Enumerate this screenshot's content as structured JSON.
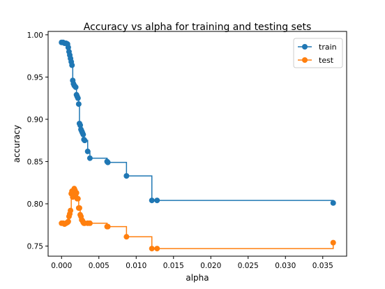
{
  "chart_data": {
    "type": "line",
    "title": "Accuracy vs alpha for training and testing sets",
    "xlabel": "alpha",
    "ylabel": "accuracy",
    "xlim": [
      -0.0018,
      0.0382
    ],
    "ylim": [
      0.738,
      1.004
    ],
    "xticks": [
      0.0,
      0.005,
      0.01,
      0.015,
      0.02,
      0.025,
      0.03,
      0.035
    ],
    "xtick_labels": [
      "0.000",
      "0.005",
      "0.010",
      "0.015",
      "0.020",
      "0.025",
      "0.030",
      "0.035"
    ],
    "yticks": [
      0.75,
      0.8,
      0.85,
      0.9,
      0.95,
      1.0
    ],
    "ytick_labels": [
      "0.75",
      "0.80",
      "0.85",
      "0.90",
      "0.95",
      "1.00"
    ],
    "grid": false,
    "legend_position": "top-right",
    "step": "post",
    "x": [
      0.0,
      0.0002,
      0.0004,
      0.0006,
      0.0008,
      0.0009,
      0.001,
      0.0011,
      0.0012,
      0.0013,
      0.0014,
      0.0015,
      0.0016,
      0.0017,
      0.0018,
      0.0019,
      0.002,
      0.0021,
      0.0022,
      0.0023,
      0.0024,
      0.0025,
      0.0026,
      0.0027,
      0.0028,
      0.0029,
      0.003,
      0.0031,
      0.0035,
      0.0038,
      0.0061,
      0.0062,
      0.0087,
      0.0121,
      0.0128,
      0.0364
    ],
    "series": [
      {
        "name": "train",
        "color": "#1f77b4",
        "values": [
          0.991,
          0.991,
          0.99,
          0.99,
          0.989,
          0.985,
          0.98,
          0.976,
          0.972,
          0.968,
          0.964,
          0.946,
          0.942,
          0.94,
          0.939,
          0.938,
          0.929,
          0.927,
          0.925,
          0.918,
          0.895,
          0.893,
          0.888,
          0.886,
          0.884,
          0.882,
          0.876,
          0.875,
          0.862,
          0.854,
          0.85,
          0.849,
          0.833,
          0.804,
          0.804,
          0.801
        ]
      },
      {
        "name": "test",
        "color": "#ff7f0e",
        "values": [
          0.777,
          0.777,
          0.776,
          0.777,
          0.778,
          0.779,
          0.785,
          0.788,
          0.792,
          0.812,
          0.815,
          0.808,
          0.814,
          0.818,
          0.816,
          0.811,
          0.813,
          0.806,
          0.806,
          0.795,
          0.795,
          0.787,
          0.785,
          0.781,
          0.78,
          0.778,
          0.777,
          0.777,
          0.777,
          0.777,
          0.773,
          0.773,
          0.761,
          0.747,
          0.747,
          0.754
        ]
      }
    ]
  }
}
